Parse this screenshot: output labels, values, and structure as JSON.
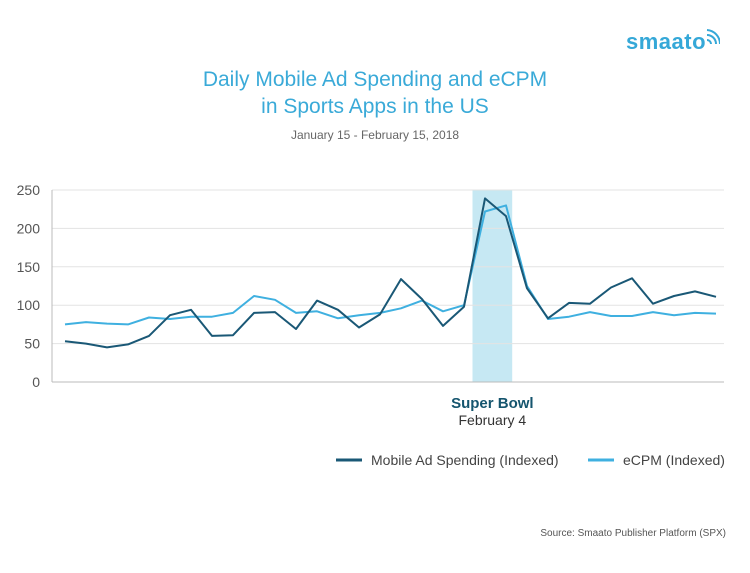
{
  "logo": {
    "text": "smaato",
    "icon": "wifi-waves-icon"
  },
  "chart_data": {
    "type": "line",
    "title_line1": "Daily Mobile Ad Spending and eCPM",
    "title_line2": "in Sports Apps in the US",
    "subtitle": "January 15 - February 15, 2018",
    "ylim": [
      0,
      250
    ],
    "yticks": [
      0,
      50,
      100,
      150,
      200,
      250
    ],
    "xlabel": "",
    "ylabel": "",
    "grid": true,
    "x": [
      0,
      1,
      2,
      3,
      4,
      5,
      6,
      7,
      8,
      9,
      10,
      11,
      12,
      13,
      14,
      15,
      16,
      17,
      18,
      19,
      20,
      21,
      22,
      23,
      24,
      25,
      26,
      27,
      28,
      29,
      30,
      31
    ],
    "series": [
      {
        "name": "Mobile Ad Spending (Indexed)",
        "color": "#1a5876",
        "values": [
          53,
          50,
          45,
          49,
          60,
          87,
          94,
          60,
          61,
          90,
          91,
          69,
          106,
          94,
          71,
          88,
          134,
          108,
          73,
          98,
          239,
          216,
          122,
          83,
          103,
          102,
          123,
          135,
          102,
          112,
          118,
          111
        ]
      },
      {
        "name": "eCPM (Indexed)",
        "color": "#3fb0e0",
        "values": [
          75,
          78,
          76,
          75,
          84,
          82,
          85,
          85,
          90,
          112,
          107,
          90,
          92,
          83,
          87,
          90,
          96,
          106,
          92,
          100,
          222,
          230,
          125,
          82,
          85,
          91,
          86,
          86,
          91,
          87,
          90,
          89
        ]
      }
    ],
    "highlight": {
      "start_index": 19.5,
      "end_index": 21.2,
      "color": "#c6e8f3"
    },
    "annotation": {
      "line1": "Super Bowl",
      "line2": "February 4"
    },
    "legend_position": "bottom-right"
  },
  "source": "Source: Smaato Publisher Platform (SPX)"
}
